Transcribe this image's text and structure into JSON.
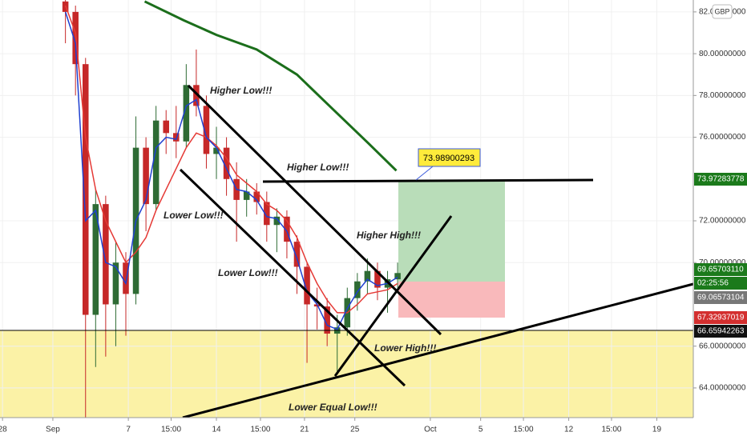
{
  "chart_data": {
    "type": "candlestick",
    "up_color": "#2e6b34",
    "down_color": "#c62828",
    "x": [
      1.0,
      1.8,
      2.6,
      3.4,
      4.2,
      5.0,
      5.8,
      6.6,
      7.4,
      8.2,
      9.0,
      9.8,
      10.6,
      11.4,
      12.2,
      13.0,
      13.8,
      14.6,
      15.4,
      16.2,
      17.0,
      17.8,
      18.6,
      19.4,
      20.2,
      21.0,
      21.8,
      22.6,
      23.4,
      24.2,
      25.0,
      25.8,
      26.6,
      27.4
    ],
    "open": [
      82.5,
      82.0,
      79.5,
      67.5,
      72.8,
      68,
      70,
      68.5,
      75.5,
      72.8,
      76.8,
      76.2,
      75.8,
      78.5,
      77.5,
      75.2,
      75.5,
      74,
      73,
      73.4,
      72.9,
      71.8,
      72.2,
      71,
      69.8,
      68,
      67.9,
      66.6,
      66.9,
      68.3,
      69.1,
      69.6,
      68.8,
      69.2
    ],
    "high": [
      82.6,
      82.3,
      79.8,
      73.5,
      73.2,
      71,
      70.5,
      77,
      76,
      77.5,
      77.3,
      77.5,
      79.5,
      80.2,
      78,
      76.5,
      76,
      74.8,
      74,
      73.8,
      73.4,
      72.6,
      72.5,
      71.3,
      70,
      68.8,
      68.3,
      67.5,
      68.8,
      69.5,
      70.2,
      70,
      69.6,
      70
    ],
    "low": [
      80.5,
      78,
      62.6,
      65,
      65.5,
      66,
      66.5,
      68,
      71.5,
      72.5,
      75.2,
      75,
      75.5,
      77,
      74.5,
      74,
      73.2,
      71,
      72.2,
      72.3,
      71,
      70.5,
      70.2,
      68.5,
      65.2,
      66.8,
      66,
      64.8,
      66.5,
      67.7,
      68.5,
      68.2,
      67.6,
      68.8
    ],
    "close": [
      82.0,
      79.5,
      67.5,
      72.8,
      68,
      70,
      68.5,
      75.5,
      72.8,
      76.8,
      76.2,
      75.8,
      78.5,
      77.5,
      75.2,
      75.5,
      74,
      73,
      73.4,
      72.9,
      71.8,
      72.2,
      71,
      69.8,
      68,
      67.9,
      66.6,
      66.9,
      68.3,
      69.1,
      69.6,
      68.8,
      69.2,
      69.5
    ],
    "moving_averages": [
      {
        "color": "#e53935",
        "x": [
          1.0,
          1.8,
          2.6,
          3.4,
          4.2,
          5.0,
          5.8,
          6.6,
          7.4,
          8.2,
          9.0,
          9.8,
          10.6,
          11.4,
          12.2,
          13.0,
          13.8,
          14.6,
          15.4,
          16.2,
          17.0,
          17.8,
          18.6,
          19.4,
          20.2,
          21.0,
          21.8,
          22.6,
          23.4,
          24.2,
          25.0,
          25.8,
          26.6,
          27.4
        ],
        "values": [
          82.3,
          81,
          76,
          73.5,
          72,
          71,
          70,
          70.5,
          71.2,
          72.5,
          73.5,
          74.5,
          75.5,
          76.2,
          76,
          75.6,
          75,
          74.2,
          73.8,
          73.4,
          72.8,
          72.5,
          72,
          71.2,
          70,
          69,
          68.2,
          67.6,
          67.6,
          68,
          68.5,
          68.6,
          68.7,
          69
        ]
      },
      {
        "color": "#1e3fd0",
        "x": [
          1.0,
          1.8,
          2.6,
          3.4,
          4.2,
          5.0,
          5.8,
          6.6,
          7.4,
          8.2,
          9.0,
          9.8,
          10.6,
          11.4,
          12.2,
          13.0,
          13.8,
          14.6,
          15.4,
          16.2,
          17.0,
          17.8,
          18.6,
          19.4,
          20.2,
          21.0,
          21.8,
          22.6,
          23.4,
          24.2,
          25.0,
          25.8,
          26.6,
          27.4
        ],
        "values": [
          82,
          80.5,
          72,
          72.5,
          70,
          69.8,
          69,
          72,
          73,
          75.5,
          76,
          75.9,
          77.5,
          77.8,
          76,
          75.5,
          74.5,
          73.5,
          73.4,
          73,
          72.2,
          72.1,
          71.5,
          70.2,
          68.6,
          68,
          67,
          66.8,
          67.8,
          68.6,
          69.2,
          68.9,
          69,
          69.3
        ]
      },
      {
        "color": "#1b6e1b",
        "x": [
          7.3,
          10.4,
          13.0,
          16.2,
          19.4,
          22.5,
          25.1,
          27.3
        ],
        "values": [
          82.5,
          81.6,
          80.9,
          80.2,
          79.0,
          77.2,
          75.7,
          74.4
        ]
      }
    ],
    "ylim": [
      62.58,
      82.57
    ],
    "yticks": [
      {
        "value": 64,
        "label": "64.00000000"
      },
      {
        "value": 66,
        "label": "66.00000000"
      },
      {
        "value": 70,
        "label": "70.00000000"
      },
      {
        "value": 72,
        "label": "72.00000000"
      },
      {
        "value": 76,
        "label": "76.00000000"
      },
      {
        "value": 78,
        "label": "78.00000000"
      },
      {
        "value": 80,
        "label": "80.00000000"
      },
      {
        "value": 82,
        "label": "82.00000000"
      }
    ],
    "xlim": [
      -4.2,
      50.9
    ],
    "xticks": [
      {
        "value": -4,
        "label": "28"
      },
      {
        "value": 0,
        "label": "Sep"
      },
      {
        "value": 6,
        "label": "7"
      },
      {
        "value": 9.4,
        "label": "15:00"
      },
      {
        "value": 13,
        "label": "14"
      },
      {
        "value": 16.5,
        "label": "15:00"
      },
      {
        "value": 20,
        "label": "21"
      },
      {
        "value": 24,
        "label": "25"
      },
      {
        "value": 30,
        "label": "Oct"
      },
      {
        "value": 34,
        "label": "5"
      },
      {
        "value": 37.4,
        "label": "15:00"
      },
      {
        "value": 41,
        "label": "12"
      },
      {
        "value": 44.4,
        "label": "15:00"
      },
      {
        "value": 48,
        "label": "19"
      }
    ],
    "currency": "GBP",
    "callout": "73.98900293",
    "annotations": [
      "Higher Low!!!",
      "Higher Low!!!",
      "Lower Low!!!",
      "Lower Low!!!",
      "Higher High!!!",
      "Lower High!!!",
      "Lower Equal Low!!!"
    ],
    "price_labels": [
      "73.97283778",
      "69.65703110",
      "02:25:56",
      "69.06573104",
      "67.32937019",
      "66.65942263"
    ]
  }
}
